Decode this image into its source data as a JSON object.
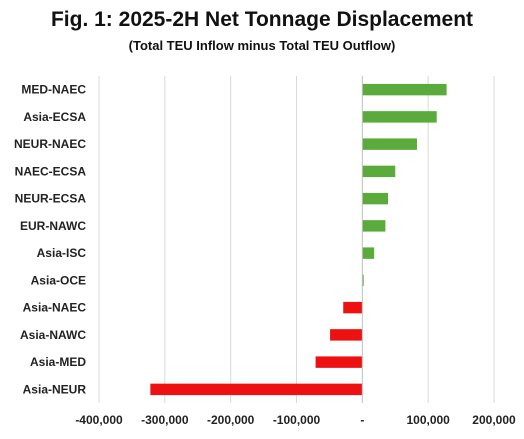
{
  "chart_data": {
    "type": "bar",
    "orientation": "horizontal",
    "title": "Fig. 1: 2025-2H Net Tonnage Displacement",
    "subtitle": "(Total TEU Inflow minus Total TEU Outflow)",
    "categories": [
      "MED-NAEC",
      "Asia-ECSA",
      "NEUR-NAEC",
      "NAEC-ECSA",
      "NEUR-ECSA",
      "EUR-NAWC",
      "Asia-ISC",
      "Asia-OCE",
      "Asia-NAEC",
      "Asia-NAWC",
      "Asia-MED",
      "Asia-NEUR"
    ],
    "values": [
      128000,
      113000,
      83000,
      50000,
      39000,
      35000,
      18000,
      2000,
      -29000,
      -49000,
      -71000,
      -322000
    ],
    "xlim": [
      -400000,
      200000
    ],
    "xticks": [
      -400000,
      -300000,
      -200000,
      -100000,
      0,
      100000,
      200000
    ],
    "xtick_labels": [
      "-400,000",
      "-300,000",
      "-200,000",
      "-100,000",
      "-",
      "100,000",
      "200,000"
    ],
    "grid": true,
    "colors": {
      "positive": "#5aab3c",
      "negative": "#ee1111",
      "grid": "#d9d9d9",
      "axis": "#bfbfbf"
    }
  }
}
